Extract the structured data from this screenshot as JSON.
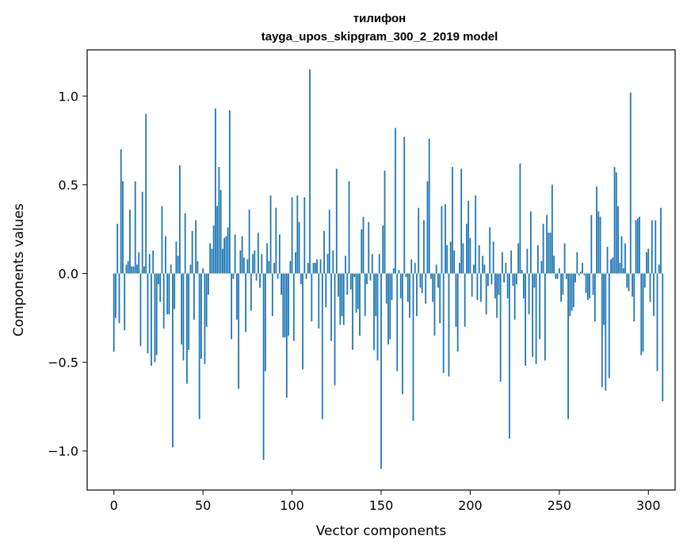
{
  "chart_data": {
    "type": "bar",
    "title": "тилифон",
    "subtitle": "tayga_upos_skipgram_300_2_2019 model",
    "xlabel": "Vector components",
    "ylabel": "Components values",
    "xlim": [
      -15,
      315
    ],
    "ylim": [
      -1.22,
      1.26
    ],
    "xticks": [
      0,
      50,
      100,
      150,
      200,
      250,
      300
    ],
    "yticks": [
      -1.0,
      -0.5,
      0.0,
      0.5,
      1.0
    ],
    "ytick_labels": [
      "−1.0",
      "−0.5",
      "0.0",
      "0.5",
      "1.0"
    ],
    "grid": false,
    "bar_color": "#1f77b4",
    "values": [
      -0.44,
      -0.25,
      0.28,
      -0.28,
      0.7,
      0.52,
      -0.32,
      0.05,
      0.07,
      0.36,
      0.04,
      0.04,
      0.52,
      0.05,
      0.12,
      -0.41,
      0.46,
      0.04,
      0.9,
      -0.45,
      0.11,
      -0.52,
      0.13,
      -0.5,
      -0.46,
      -0.06,
      -0.16,
      0.38,
      -0.31,
      0.21,
      -0.23,
      -0.23,
      0.05,
      -0.98,
      -0.2,
      0.18,
      0.1,
      0.61,
      -0.4,
      -0.49,
      0.34,
      -0.62,
      -0.43,
      0.05,
      0.24,
      -0.26,
      0.3,
      0.07,
      -0.82,
      -0.48,
      0.03,
      -0.51,
      -0.3,
      -0.12,
      0.17,
      0.14,
      0.27,
      0.93,
      0.38,
      0.6,
      0.47,
      0.14,
      0.2,
      0.21,
      0.26,
      0.92,
      -0.37,
      -0.03,
      0.22,
      -0.26,
      -0.65,
      0.13,
      0.21,
      0.09,
      -0.33,
      0.08,
      0.36,
      -0.21,
      0.11,
      0.13,
      -0.04,
      0.23,
      -0.08,
      0.11,
      -1.05,
      -0.55,
      0.17,
      0.07,
      0.44,
      -0.24,
      0.06,
      0.37,
      -0.03,
      0.22,
      -0.12,
      -0.36,
      -0.36,
      -0.7,
      -0.35,
      0.07,
      0.43,
      -0.38,
      0.12,
      0.44,
      0.29,
      -0.06,
      -0.54,
      0.43,
      -0.03,
      0.06,
      1.15,
      -0.27,
      0.06,
      0.06,
      0.08,
      -0.31,
      0.08,
      -0.82,
      0.24,
      -0.19,
      0.11,
      0.36,
      -0.38,
      0.13,
      -0.63,
      0.59,
      -0.13,
      -0.29,
      -0.24,
      -0.29,
      0.1,
      -0.12,
      0.52,
      -0.09,
      -0.43,
      -0.02,
      -0.22,
      -0.2,
      -0.35,
      0.25,
      0.32,
      -0.24,
      -0.06,
      0.29,
      -0.04,
      0.11,
      -0.43,
      -0.24,
      -0.49,
      0.11,
      -1.1,
      0.27,
      0.58,
      -0.17,
      -0.4,
      -0.37,
      -0.15,
      0.03,
      0.82,
      -0.55,
      0.02,
      -0.14,
      -0.68,
      0.77,
      -0.02,
      -0.16,
      -0.25,
      0.08,
      -0.83,
      0.06,
      -0.24,
      0.37,
      -0.08,
      -0.11,
      0.3,
      -0.17,
      0.52,
      0.76,
      -0.03,
      -0.16,
      -0.35,
      0.05,
      -0.08,
      -0.28,
      0.38,
      -0.56,
      0.39,
      0.16,
      -0.58,
      0.18,
      0.6,
      0.13,
      -0.3,
      -0.44,
      0.06,
      0.59,
      0.17,
      -0.3,
      0.28,
      0.41,
      0.2,
      -0.13,
      0.05,
      0.44,
      -0.15,
      0.16,
      -0.16,
      0.1,
      0.05,
      -0.23,
      -0.07,
      0.26,
      -0.06,
      0.18,
      -0.14,
      -0.25,
      -0.12,
      -0.61,
      0.12,
      -0.05,
      0.06,
      -0.14,
      -0.93,
      0.13,
      -0.07,
      -0.26,
      -0.06,
      0.17,
      0.62,
      0.02,
      -0.14,
      -0.52,
      0.14,
      -0.23,
      0.35,
      -0.47,
      -0.08,
      -0.51,
      0.16,
      -0.37,
      0.07,
      0.28,
      -0.49,
      0.33,
      0.23,
      0.23,
      0.5,
      0.1,
      -0.03,
      -0.03,
      0.03,
      -0.16,
      -0.12,
      0.17,
      -0.03,
      -0.82,
      -0.24,
      -0.21,
      -0.19,
      -0.05,
      0.12,
      -0.01,
      0.01,
      0.06,
      -0.01,
      -0.11,
      -0.15,
      -0.14,
      0.33,
      -0.12,
      -0.27,
      0.49,
      0.35,
      0.32,
      -0.64,
      -0.29,
      -0.66,
      0.15,
      -0.59,
      0.08,
      0.09,
      0.6,
      0.57,
      0.38,
      0.06,
      0.21,
      0.03,
      0.17,
      -0.08,
      -0.1,
      1.02,
      -0.13,
      -0.27,
      0.3,
      0.31,
      0.32,
      -0.46,
      -0.44,
      -0.08,
      0.12,
      0.14,
      -0.16,
      0.3,
      -0.24,
      0.3,
      -0.55,
      0.05,
      0.37,
      -0.72
    ]
  }
}
